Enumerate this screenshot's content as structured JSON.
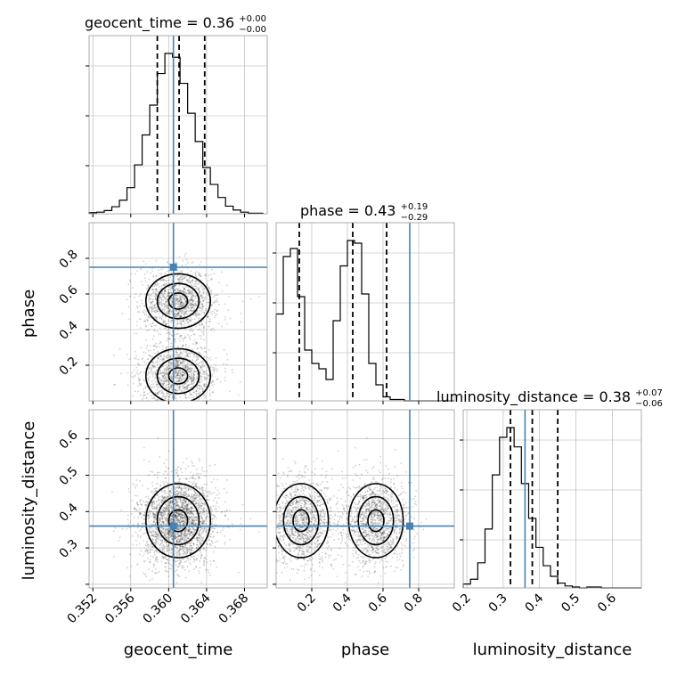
{
  "chart_data": {
    "type": "corner",
    "parameters": [
      "geocent_time",
      "phase",
      "luminosity_distance"
    ],
    "titles": {
      "geocent_time": {
        "prefix": "geocent_time = ",
        "median": "0.36",
        "plus": "+0.00",
        "minus": "−0.00"
      },
      "phase": {
        "prefix": "phase = ",
        "median": "0.43",
        "plus": "+0.19",
        "minus": "−0.29"
      },
      "luminosity_distance": {
        "prefix": "luminosity_distance = ",
        "median": "0.38",
        "plus": "+0.07",
        "minus": "−0.06"
      }
    },
    "ranges": {
      "geocent_time": [
        0.3516,
        0.3704
      ],
      "phase": [
        0.0,
        1.0
      ],
      "luminosity_distance": [
        0.19,
        0.68
      ]
    },
    "ticks": {
      "geocent_time": [
        0.352,
        0.356,
        0.36,
        0.364,
        0.368
      ],
      "phase": [
        0.2,
        0.4,
        0.6,
        0.8
      ],
      "luminosity_distance": [
        0.2,
        0.3,
        0.4,
        0.5,
        0.6
      ]
    },
    "tick_labels": {
      "geocent_time": [
        "0.352",
        "0.356",
        "0.360",
        "0.364",
        "0.368"
      ],
      "phase": [
        "0.2",
        "0.4",
        "0.6",
        "0.8"
      ],
      "phase_y": [
        "0.2",
        "0.4",
        "0.6",
        "0.8"
      ],
      "luminosity_distance": [
        "0.2",
        "0.3",
        "0.4",
        "0.5",
        "0.6"
      ],
      "luminosity_distance_y": [
        "0.3",
        "0.4",
        "0.5",
        "0.6"
      ]
    },
    "truths": {
      "geocent_time": 0.3605,
      "phase": 0.75,
      "luminosity_distance": 0.36
    },
    "truth_color": "#4682b4",
    "quantiles": {
      "geocent_time": [
        0.3588,
        0.3611,
        0.3638
      ],
      "phase": [
        0.13,
        0.43,
        0.62
      ],
      "luminosity_distance": [
        0.32,
        0.38,
        0.45
      ]
    },
    "histograms": {
      "geocent_time": {
        "edges_start": 0.3516,
        "bin_width": 0.0008,
        "counts": [
          2,
          3,
          6,
          13,
          25,
          48,
          90,
          145,
          200,
          258,
          295,
          288,
          240,
          185,
          133,
          85,
          54,
          30,
          14,
          7,
          3,
          1,
          1
        ]
      },
      "phase": {
        "edges_start": 0.0,
        "bin_width": 0.04,
        "counts": [
          65,
          108,
          114,
          78,
          38,
          28,
          24,
          16,
          60,
          101,
          120,
          118,
          80,
          28,
          12,
          3,
          1,
          1,
          0,
          0,
          0,
          0,
          0,
          0,
          0
        ]
      },
      "luminosity_distance": {
        "edges_start": 0.19,
        "bin_width": 0.02,
        "counts": [
          4,
          9,
          26,
          61,
          117,
          156,
          166,
          146,
          108,
          72,
          42,
          23,
          12,
          5,
          2,
          1,
          0,
          1,
          1,
          0,
          0,
          0,
          0,
          0,
          0
        ]
      }
    },
    "posterior_modes": {
      "phase": [
        0.14,
        0.56
      ],
      "geocent_time_center": 0.361,
      "luminosity_distance_center": 0.375
    },
    "grid": true
  }
}
